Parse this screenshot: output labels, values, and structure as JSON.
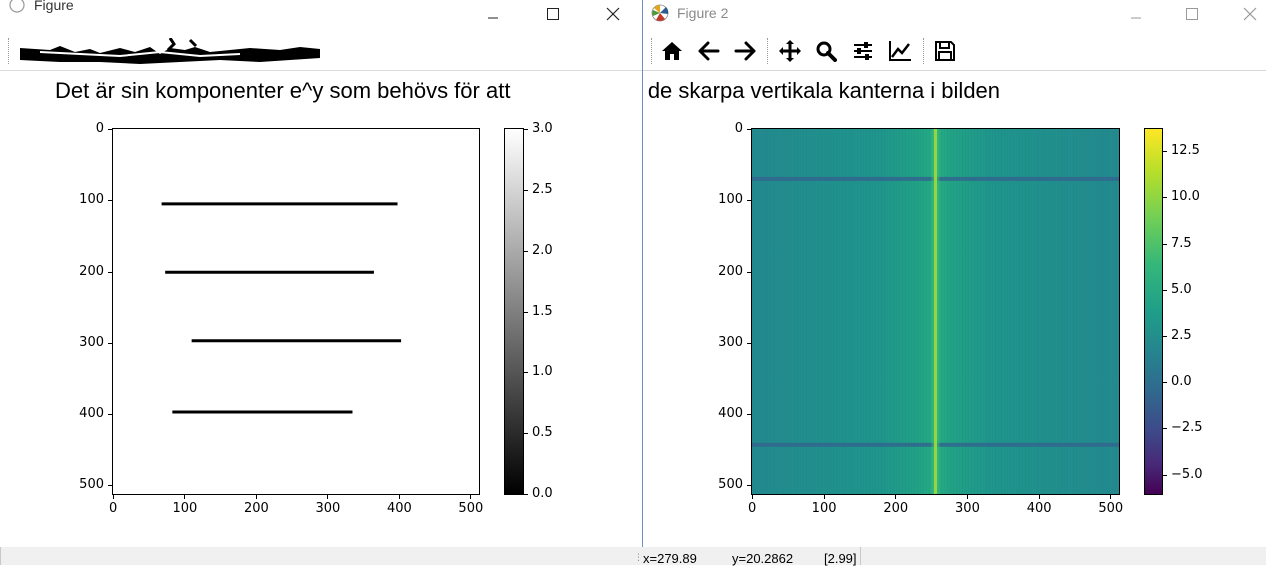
{
  "window1": {
    "title": "Figure",
    "suptitle": "Det är sin komponenter e^y som behövs för att",
    "plot": {
      "y_ticks": [
        "0",
        "100",
        "200",
        "300",
        "400",
        "500"
      ],
      "x_ticks": [
        "0",
        "100",
        "200",
        "300",
        "400",
        "500"
      ]
    },
    "colorbar": {
      "ticks": [
        "3.0",
        "2.5",
        "2.0",
        "1.5",
        "1.0",
        "0.5",
        "0.0"
      ],
      "colormap": "gray"
    }
  },
  "window2": {
    "title": "Figure 2",
    "suptitle": "skapa de skarpa vertikala kanterna i bilden",
    "plot": {
      "y_ticks": [
        "0",
        "100",
        "200",
        "300",
        "400",
        "500"
      ],
      "x_ticks": [
        "0",
        "100",
        "200",
        "300",
        "400",
        "500"
      ]
    },
    "colorbar": {
      "ticks": [
        "12.5",
        "10.0",
        "7.5",
        "5.0",
        "2.5",
        "0.0",
        "−2.5",
        "−5.0"
      ],
      "colormap": "viridis"
    },
    "toolbar": {
      "icons": [
        "home-icon",
        "back-arrow-icon",
        "forward-arrow-icon",
        "pan-icon",
        "zoom-icon",
        "configure-subplots-icon",
        "edit-curves-icon",
        "save-icon"
      ]
    }
  },
  "statusbar": {
    "x_readout": "x=279.89",
    "y_readout": "y=20.2862",
    "value_readout": "[2.99]"
  },
  "chart_data": [
    {
      "type": "heatmap",
      "description_source": "window1 image",
      "image_size": [
        512,
        512
      ],
      "xlim": [
        0,
        512
      ],
      "ylim": [
        512,
        0
      ],
      "segments": [
        {
          "y": 105,
          "x_start": 68,
          "x_end": 398
        },
        {
          "y": 201,
          "x_start": 73,
          "x_end": 365
        },
        {
          "y": 297,
          "x_start": 110,
          "x_end": 403
        },
        {
          "y": 397,
          "x_start": 83,
          "x_end": 335
        }
      ],
      "value_range": [
        0,
        3
      ],
      "colormap": "gray"
    },
    {
      "type": "heatmap",
      "description_source": "window2 image",
      "image_size": [
        512,
        512
      ],
      "xlim": [
        0,
        512
      ],
      "ylim": [
        512,
        0
      ],
      "bright_column_x": 256,
      "dark_rows_y": [
        70,
        443
      ],
      "value_range": [
        -6,
        13.7
      ],
      "colormap": "viridis"
    }
  ]
}
